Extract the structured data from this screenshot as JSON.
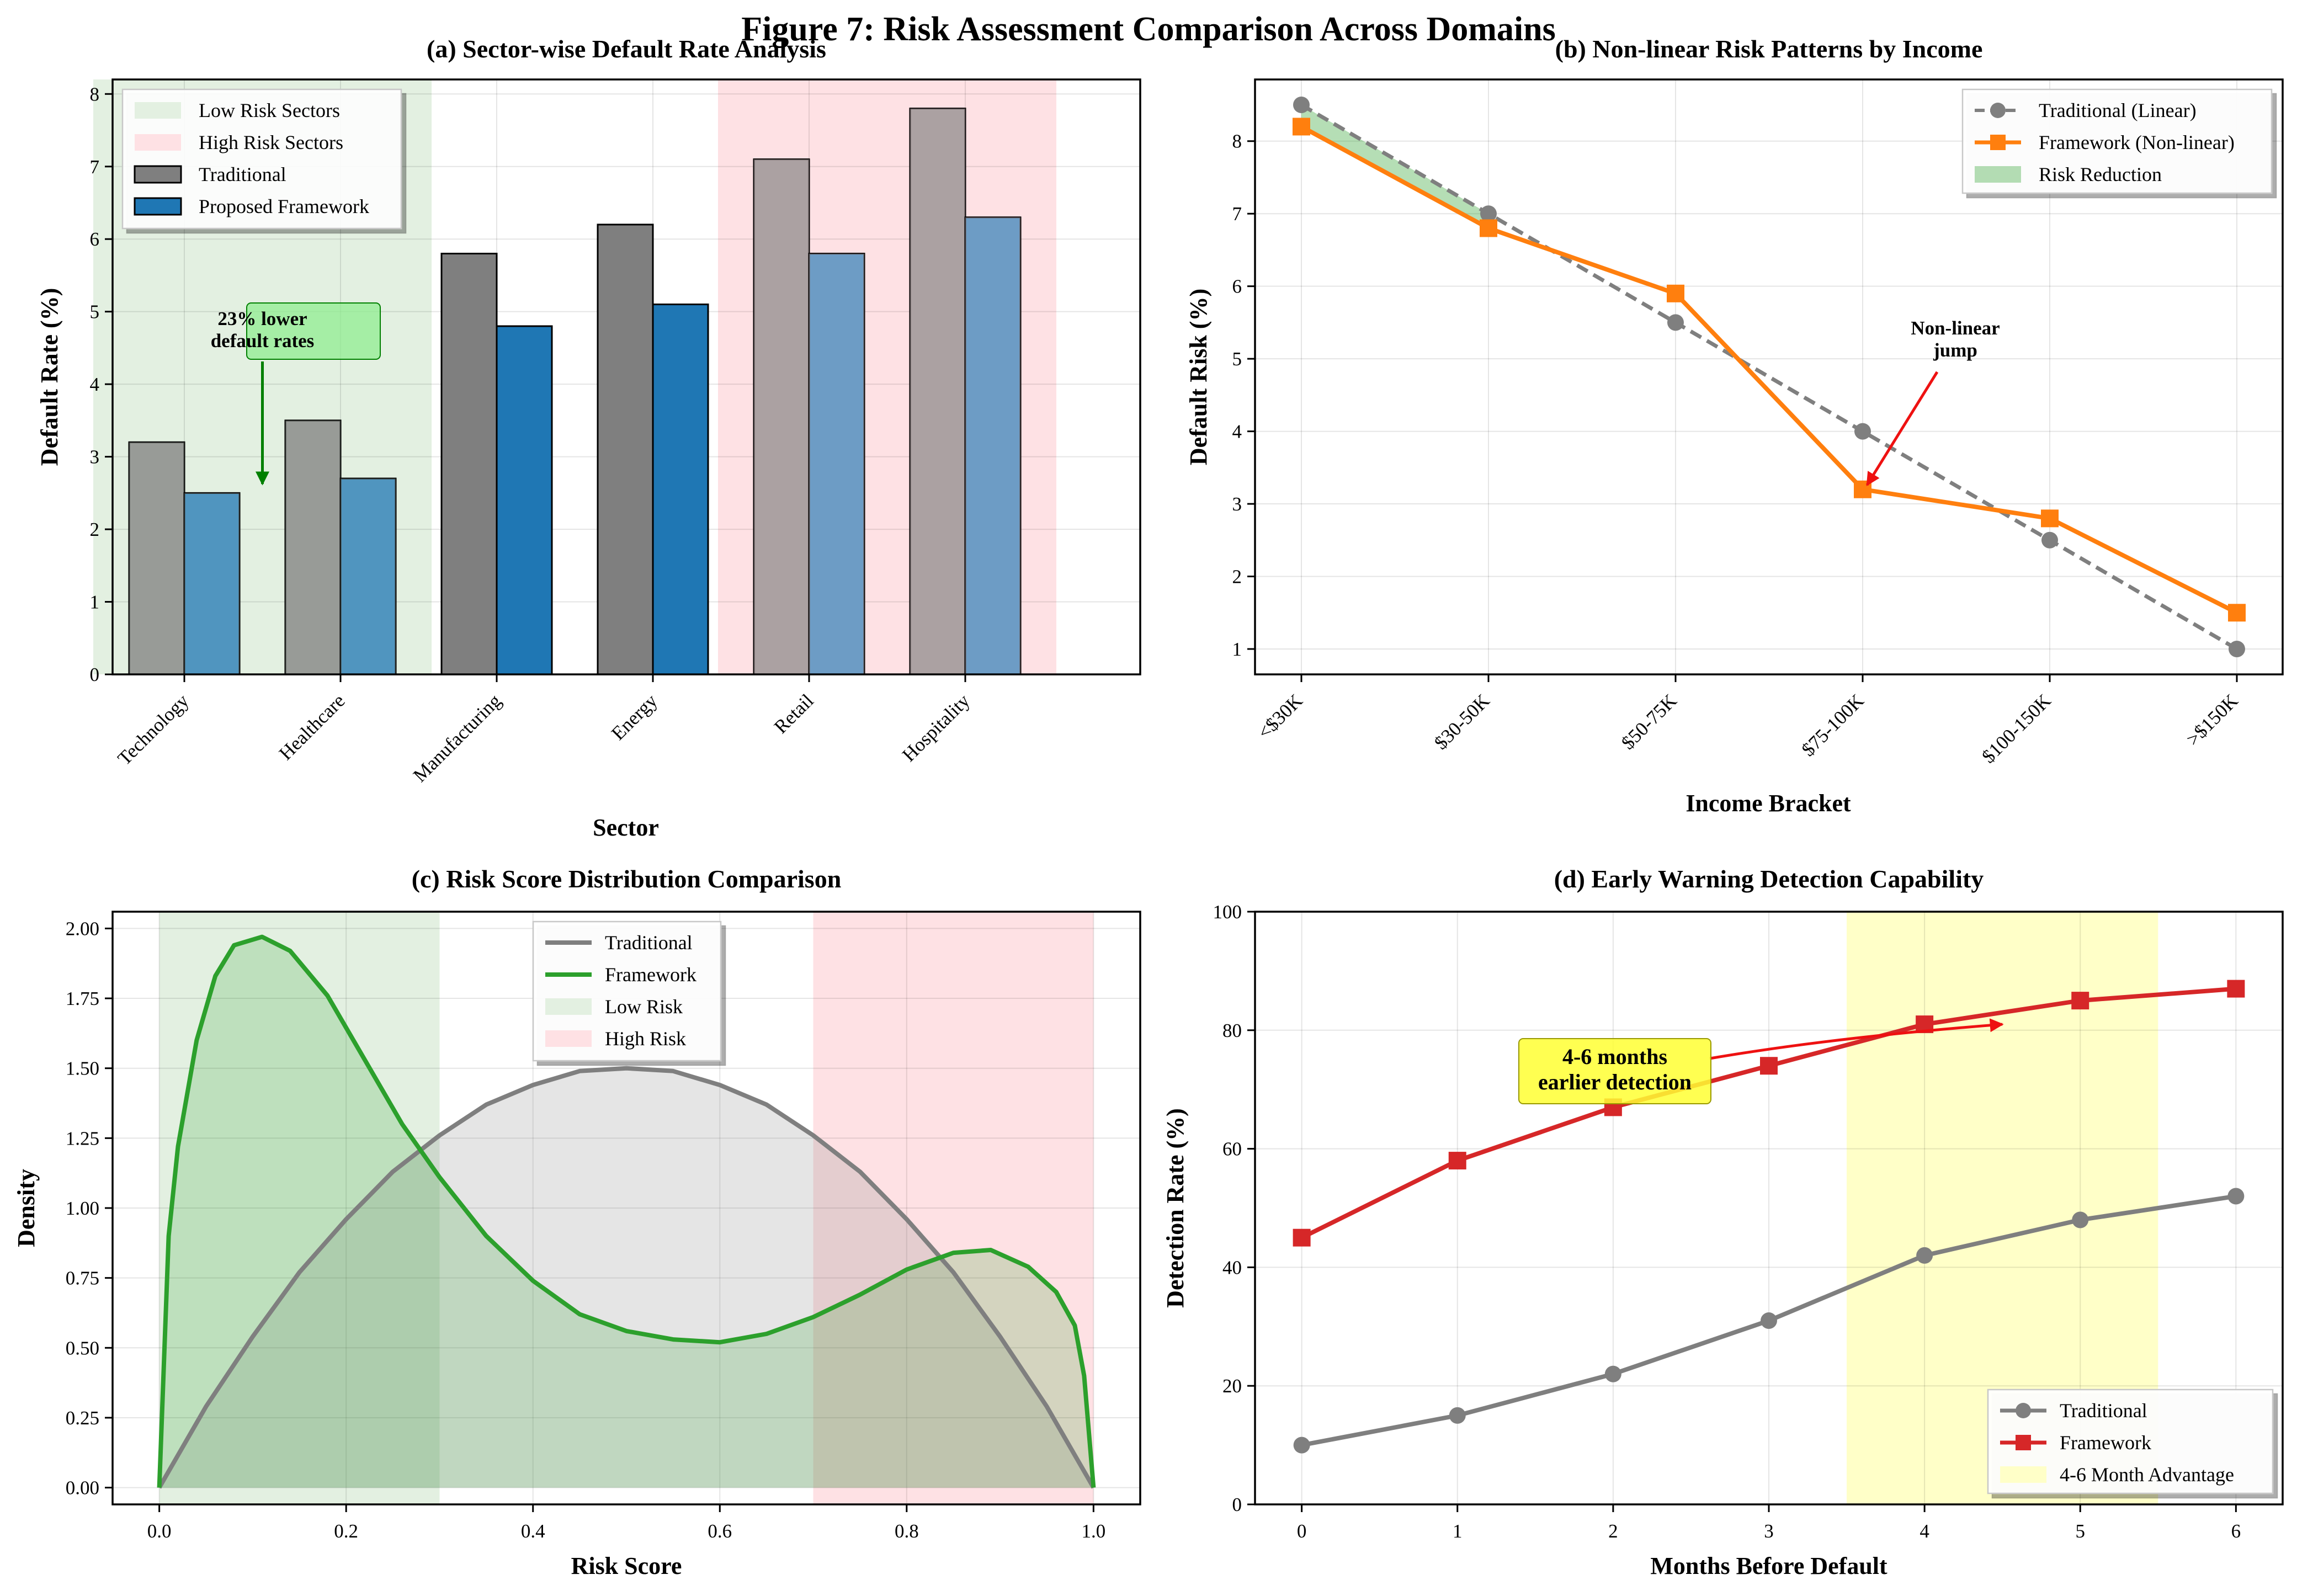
{
  "figure_title": "Figure 7: Risk Assessment Comparison Across Domains",
  "colors": {
    "traditional": "#7f7f7f",
    "framework_blue": "#1f77b4",
    "framework_orange": "#ff7f0e",
    "framework_green": "#2ca02c",
    "framework_red": "#d62728",
    "low_risk_band": "#e3f0e1",
    "high_risk_band": "#fee1e4",
    "advantage_band": "#ffffc8",
    "annotation_green": "#008000",
    "annotation_red": "#ee1111"
  },
  "chart_data": [
    {
      "id": "a",
      "type": "bar",
      "title": "(a) Sector-wise Default Rate Analysis",
      "xlabel": "Sector",
      "ylabel": "Default Rate (%)",
      "categories": [
        "Technology",
        "Healthcare",
        "Manufacturing",
        "Energy",
        "Retail",
        "Hospitality"
      ],
      "series": [
        {
          "name": "Traditional",
          "values": [
            3.2,
            3.5,
            5.8,
            6.2,
            7.1,
            7.8
          ]
        },
        {
          "name": "Proposed Framework",
          "values": [
            2.5,
            2.7,
            4.8,
            5.1,
            5.8,
            6.3
          ]
        }
      ],
      "ylim": [
        0,
        8.2
      ],
      "yticks": [
        "0",
        "1",
        "2",
        "3",
        "4",
        "5",
        "6",
        "7",
        "8"
      ],
      "bands": [
        {
          "name": "Low Risk Sectors",
          "from_category": 0,
          "to_category": 1
        },
        {
          "name": "High Risk Sectors",
          "from_category": 4,
          "to_category": 5
        }
      ],
      "annotation": {
        "text_lines": [
          "23% lower",
          "default rates"
        ],
        "points_to": {
          "category": 0.5,
          "value": 2.7
        }
      },
      "legend": [
        "Low Risk Sectors",
        "High Risk Sectors",
        "Traditional",
        "Proposed Framework"
      ],
      "legend_position": "upper-left",
      "grid": true
    },
    {
      "id": "b",
      "type": "line",
      "title": "(b) Non-linear Risk Patterns by Income",
      "xlabel": "Income Bracket",
      "ylabel": "Default Risk (%)",
      "categories": [
        "<$30K",
        "$30-50K",
        "$50-75K",
        "$75-100K",
        "$100-150K",
        ">$150K"
      ],
      "series": [
        {
          "name": "Traditional (Linear)",
          "values": [
            8.5,
            7.0,
            5.5,
            4.0,
            2.5,
            1.0
          ],
          "style": "dashed",
          "marker": "circle"
        },
        {
          "name": "Framework (Non-linear)",
          "values": [
            8.2,
            6.8,
            5.9,
            3.2,
            2.8,
            1.5
          ],
          "style": "solid",
          "marker": "square"
        }
      ],
      "fill_label": "Risk Reduction",
      "ylim": [
        0.65,
        8.85
      ],
      "yticks": [
        "1",
        "2",
        "3",
        "4",
        "5",
        "6",
        "7",
        "8"
      ],
      "annotation": {
        "text_lines": [
          "Non-linear",
          "jump"
        ],
        "points_to": {
          "category": 3,
          "value": 3.2
        }
      },
      "legend": [
        "Traditional (Linear)",
        "Framework (Non-linear)",
        "Risk Reduction"
      ],
      "legend_position": "upper-right",
      "grid": true
    },
    {
      "id": "c",
      "type": "area",
      "title": "(c) Risk Score Distribution Comparison",
      "xlabel": "Risk Score",
      "ylabel": "Density",
      "series": [
        {
          "name": "Traditional",
          "x": [
            0,
            0.05,
            0.1,
            0.15,
            0.2,
            0.25,
            0.3,
            0.35,
            0.4,
            0.45,
            0.5,
            0.55,
            0.6,
            0.65,
            0.7,
            0.75,
            0.8,
            0.85,
            0.9,
            0.95,
            1.0
          ],
          "y": [
            0,
            0.29,
            0.54,
            0.77,
            0.96,
            1.13,
            1.26,
            1.37,
            1.44,
            1.49,
            1.5,
            1.49,
            1.44,
            1.37,
            1.26,
            1.13,
            0.96,
            0.77,
            0.54,
            0.29,
            0
          ]
        },
        {
          "name": "Framework",
          "x": [
            0,
            0.01,
            0.02,
            0.04,
            0.06,
            0.08,
            0.11,
            0.14,
            0.18,
            0.22,
            0.26,
            0.3,
            0.35,
            0.4,
            0.45,
            0.5,
            0.55,
            0.6,
            0.65,
            0.7,
            0.75,
            0.8,
            0.85,
            0.89,
            0.93,
            0.96,
            0.98,
            0.99,
            1.0
          ],
          "y": [
            0,
            0.9,
            1.22,
            1.6,
            1.83,
            1.94,
            1.97,
            1.92,
            1.76,
            1.53,
            1.3,
            1.11,
            0.9,
            0.74,
            0.62,
            0.56,
            0.53,
            0.52,
            0.55,
            0.61,
            0.69,
            0.78,
            0.84,
            0.85,
            0.79,
            0.7,
            0.58,
            0.4,
            0
          ]
        }
      ],
      "bands": [
        {
          "name": "Low Risk",
          "from": 0.0,
          "to": 0.3
        },
        {
          "name": "High Risk",
          "from": 0.7,
          "to": 1.0
        }
      ],
      "xlim": [
        -0.05,
        1.05
      ],
      "ylim": [
        -0.06,
        2.06
      ],
      "xticks": [
        0.0,
        0.2,
        0.4,
        0.6,
        0.8,
        1.0
      ],
      "xtick_labels": [
        "0.0",
        "0.2",
        "0.4",
        "0.6",
        "0.8",
        "1.0"
      ],
      "yticks": [
        0,
        0.25,
        0.5,
        0.75,
        1.0,
        1.25,
        1.5,
        1.75,
        2.0
      ],
      "ytick_labels": [
        "0.00",
        "0.25",
        "0.50",
        "0.75",
        "1.00",
        "1.25",
        "1.50",
        "1.75",
        "2.00"
      ],
      "legend": [
        "Traditional",
        "Framework",
        "Low Risk",
        "High Risk"
      ],
      "legend_position": "upper-center",
      "grid": true
    },
    {
      "id": "d",
      "type": "line",
      "title": "(d) Early Warning Detection Capability",
      "xlabel": "Months Before Default",
      "ylabel": "Detection Rate (%)",
      "x": [
        0,
        1,
        2,
        3,
        4,
        5,
        6
      ],
      "series": [
        {
          "name": "Traditional",
          "values": [
            10,
            15,
            22,
            31,
            42,
            48,
            52
          ],
          "marker": "circle"
        },
        {
          "name": "Framework",
          "values": [
            45,
            58,
            67,
            74,
            81,
            85,
            87
          ],
          "marker": "square"
        }
      ],
      "band": {
        "name": "4-6 Month Advantage",
        "from": 3.5,
        "to": 5.5
      },
      "xlim": [
        -0.3,
        6.3
      ],
      "ylim": [
        0,
        100
      ],
      "xticks": [
        "0",
        "1",
        "2",
        "3",
        "4",
        "5",
        "6"
      ],
      "yticks": [
        "0",
        "20",
        "40",
        "60",
        "80",
        "100"
      ],
      "annotation": {
        "text_lines": [
          "4-6 months",
          "earlier detection"
        ],
        "points_to": {
          "x": 4.5,
          "value": 81
        }
      },
      "legend": [
        "Traditional",
        "Framework",
        "4-6 Month Advantage"
      ],
      "legend_position": "lower-right",
      "grid": true
    }
  ]
}
